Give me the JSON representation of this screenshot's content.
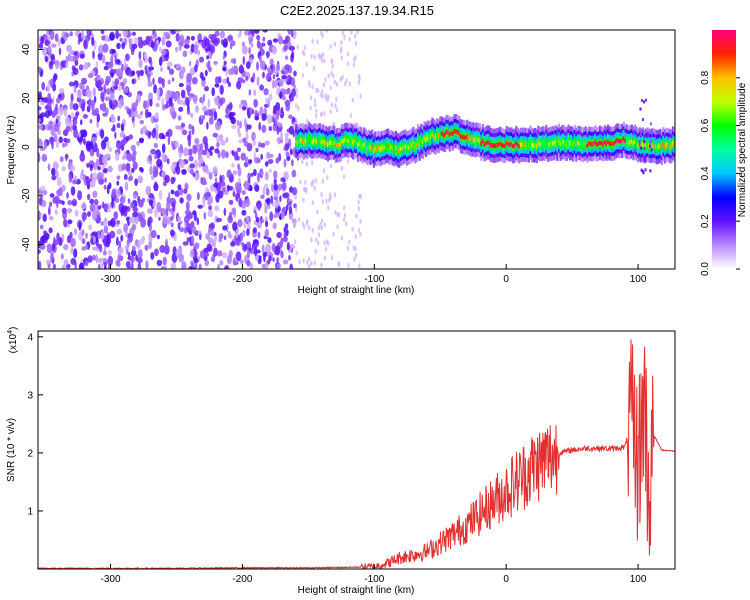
{
  "title": "C2E2.2025.137.19.34.R15",
  "chart_data": [
    {
      "type": "heatmap",
      "xlabel": "Height of straight line (km)",
      "ylabel": "Frequency (Hz)",
      "xlim": [
        -355,
        128
      ],
      "ylim": [
        -50,
        48
      ],
      "xticks": [
        -300,
        -200,
        -100,
        0,
        100
      ],
      "yticks": [
        -40,
        -20,
        0,
        20,
        40
      ],
      "colorbar": {
        "label": "Normalized spectral amplitude",
        "range": [
          0,
          1
        ],
        "ticks": [
          "0.0",
          "0.2",
          "0.4",
          "0.6",
          "0.8"
        ],
        "tick_values": [
          0,
          0.2,
          0.4,
          0.6,
          0.8
        ]
      },
      "ridge": {
        "x": [
          -160,
          -150,
          -140,
          -130,
          -120,
          -110,
          -100,
          -90,
          -80,
          -70,
          -60,
          -50,
          -40,
          -30,
          -20,
          -10,
          0,
          20,
          40,
          60,
          80,
          90,
          100,
          110,
          128
        ],
        "y": [
          2,
          3,
          2,
          1,
          3,
          1,
          -1,
          0,
          -1,
          1,
          4,
          5,
          6,
          4,
          2,
          1,
          1,
          1,
          2,
          1,
          2,
          3,
          1,
          0,
          1
        ]
      },
      "noise_region_x": [
        -355,
        -160
      ]
    },
    {
      "type": "line",
      "xlabel": "Height of straight line (km)",
      "ylabel": "SNR (10 * v/v)",
      "multiplier": "(x10",
      "multiplier_exp": "4",
      "multiplier_close": ")",
      "xlim": [
        -355,
        128
      ],
      "ylim": [
        0,
        4.1
      ],
      "xticks": [
        -300,
        -200,
        -100,
        0,
        100
      ],
      "yticks": [
        1,
        2,
        3,
        4
      ],
      "line_color": "#e03030",
      "x": [
        -355,
        -300,
        -250,
        -200,
        -150,
        -120,
        -100,
        -90,
        -80,
        -70,
        -60,
        -50,
        -40,
        -30,
        -20,
        -10,
        0,
        10,
        20,
        30,
        40,
        50,
        60,
        70,
        80,
        90,
        95,
        100,
        105,
        108,
        112,
        118,
        128
      ],
      "y": [
        0.01,
        0.01,
        0.01,
        0.02,
        0.02,
        0.03,
        0.04,
        0.1,
        0.2,
        0.25,
        0.3,
        0.45,
        0.6,
        0.75,
        0.95,
        1.15,
        1.35,
        1.55,
        1.75,
        1.9,
        2.0,
        2.05,
        2.08,
        2.08,
        2.07,
        2.1,
        2.5,
        1.8,
        3.0,
        1.2,
        2.3,
        2.05,
        2.03
      ]
    }
  ]
}
